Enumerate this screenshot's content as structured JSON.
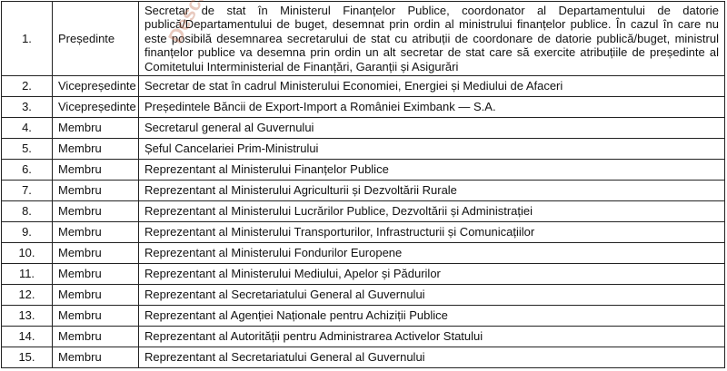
{
  "watermark": "Descărcat de pe",
  "rows": [
    {
      "num": "1.",
      "role": "Președinte",
      "desc": "Secretar de stat în Ministerul Finanțelor Publice, coordonator al Departamentului de datorie publică/Departamentului de buget, desemnat prin ordin al ministrului finanțelor publice. În cazul în care nu este posibilă desemnarea secretarului de stat cu atribuții de coordonare de datorie publică/buget, ministrul finanțelor publice va desemna prin ordin un alt secretar de stat care să exercite atribuțiile de președinte al Comitetului Interministerial de Finanțări, Garanții și Asigurări"
    },
    {
      "num": "2.",
      "role": "Vicepreședinte",
      "desc": "Secretar de stat în cadrul Ministerului Economiei, Energiei și Mediului de Afaceri"
    },
    {
      "num": "3.",
      "role": "Vicepreședinte",
      "desc": "Președintele Băncii de Export-Import a României Eximbank — S.A."
    },
    {
      "num": "4.",
      "role": "Membru",
      "desc": "Secretarul general al Guvernului"
    },
    {
      "num": "5.",
      "role": "Membru",
      "desc": "Șeful Cancelariei Prim-Ministrului"
    },
    {
      "num": "6.",
      "role": "Membru",
      "desc": "Reprezentant al Ministerului Finanțelor Publice"
    },
    {
      "num": "7.",
      "role": "Membru",
      "desc": "Reprezentant al Ministerului Agriculturii și Dezvoltării Rurale"
    },
    {
      "num": "8.",
      "role": "Membru",
      "desc": "Reprezentant al Ministerului Lucrărilor Publice, Dezvoltării și Administrației"
    },
    {
      "num": "9.",
      "role": "Membru",
      "desc": "Reprezentant al Ministerului Transporturilor, Infrastructurii și Comunicațiilor"
    },
    {
      "num": "10.",
      "role": "Membru",
      "desc": "Reprezentant al Ministerului Fondurilor Europene"
    },
    {
      "num": "11.",
      "role": "Membru",
      "desc": "Reprezentant al Ministerului Mediului, Apelor și Pădurilor"
    },
    {
      "num": "12.",
      "role": "Membru",
      "desc": "Reprezentant al Secretariatului General al Guvernului"
    },
    {
      "num": "13.",
      "role": "Membru",
      "desc": "Reprezentant al Agenției Naționale pentru Achiziții Publice"
    },
    {
      "num": "14.",
      "role": "Membru",
      "desc": "Reprezentant al Autorității pentru Administrarea Activelor Statului"
    },
    {
      "num": "15.",
      "role": "Membru",
      "desc": "Reprezentant al Secretariatului General al Guvernului"
    }
  ]
}
